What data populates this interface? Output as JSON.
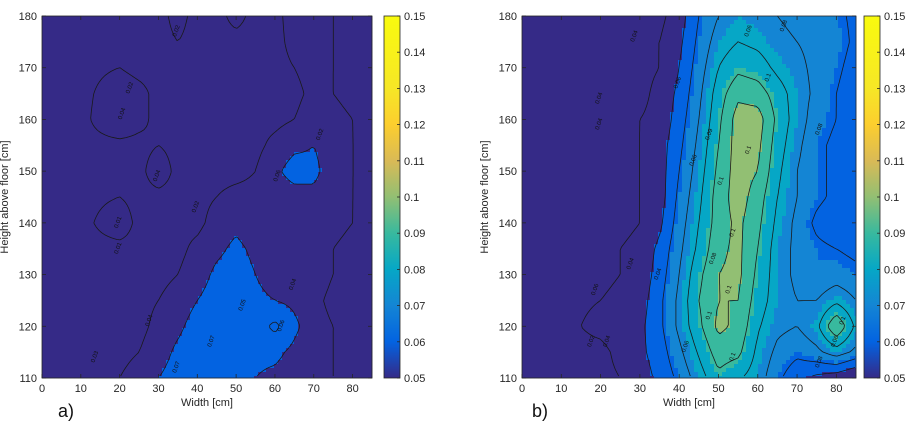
{
  "chart_data": [
    {
      "type": "heatmap",
      "panel_label": "a)",
      "xlabel": "Width [cm]",
      "ylabel": "Height above floor [cm]",
      "xlim": [
        0,
        85
      ],
      "ylim": [
        110,
        180
      ],
      "x_ticks": [
        0,
        10,
        20,
        30,
        40,
        50,
        60,
        70,
        80
      ],
      "y_ticks": [
        110,
        120,
        130,
        140,
        150,
        160,
        170,
        180
      ],
      "colorbar": {
        "range": [
          0.05,
          0.15
        ],
        "ticks": [
          "0.05",
          "0.06",
          "0.07",
          "0.08",
          "0.09",
          "0.1",
          "0.11",
          "0.12",
          "0.13",
          "0.14",
          "0.15"
        ],
        "colormap": "parula"
      },
      "x": [
        0,
        10,
        20,
        25,
        30,
        35,
        40,
        45,
        50,
        55,
        60,
        65,
        70,
        75,
        80,
        85
      ],
      "y": [
        110,
        115,
        120,
        125,
        130,
        135,
        140,
        145,
        150,
        155,
        160,
        165,
        170,
        175,
        180
      ],
      "z": [
        [
          0.05,
          0.05,
          0.052,
          0.055,
          0.06,
          0.064,
          0.066,
          0.066,
          0.064,
          0.06,
          0.058,
          0.056,
          0.054,
          0.052,
          0.05,
          0.05
        ],
        [
          0.05,
          0.05,
          0.05,
          0.052,
          0.056,
          0.062,
          0.066,
          0.066,
          0.066,
          0.062,
          0.062,
          0.058,
          0.054,
          0.052,
          0.05,
          0.05
        ],
        [
          0.05,
          0.05,
          0.05,
          0.05,
          0.054,
          0.058,
          0.064,
          0.066,
          0.066,
          0.064,
          0.07,
          0.062,
          0.055,
          0.052,
          0.05,
          0.05
        ],
        [
          0.05,
          0.05,
          0.05,
          0.05,
          0.052,
          0.055,
          0.06,
          0.064,
          0.066,
          0.062,
          0.06,
          0.058,
          0.054,
          0.05,
          0.05,
          0.05
        ],
        [
          0.05,
          0.05,
          0.05,
          0.05,
          0.05,
          0.052,
          0.056,
          0.062,
          0.064,
          0.06,
          0.056,
          0.058,
          0.056,
          0.052,
          0.05,
          0.05
        ],
        [
          0.05,
          0.05,
          0.05,
          0.05,
          0.05,
          0.05,
          0.054,
          0.058,
          0.062,
          0.058,
          0.054,
          0.056,
          0.055,
          0.052,
          0.05,
          0.05
        ],
        [
          0.05,
          0.05,
          0.056,
          0.05,
          0.05,
          0.05,
          0.05,
          0.055,
          0.058,
          0.055,
          0.052,
          0.054,
          0.056,
          0.054,
          0.052,
          0.05
        ],
        [
          0.05,
          0.05,
          0.052,
          0.05,
          0.05,
          0.05,
          0.05,
          0.052,
          0.054,
          0.054,
          0.055,
          0.056,
          0.058,
          0.055,
          0.052,
          0.05
        ],
        [
          0.05,
          0.05,
          0.05,
          0.05,
          0.056,
          0.05,
          0.05,
          0.05,
          0.05,
          0.052,
          0.058,
          0.064,
          0.062,
          0.056,
          0.052,
          0.05
        ],
        [
          0.05,
          0.05,
          0.05,
          0.05,
          0.052,
          0.05,
          0.05,
          0.05,
          0.05,
          0.05,
          0.054,
          0.058,
          0.06,
          0.056,
          0.052,
          0.05
        ],
        [
          0.05,
          0.05,
          0.058,
          0.054,
          0.05,
          0.05,
          0.05,
          0.05,
          0.05,
          0.05,
          0.05,
          0.052,
          0.056,
          0.054,
          0.052,
          0.05
        ],
        [
          0.05,
          0.05,
          0.056,
          0.054,
          0.05,
          0.05,
          0.05,
          0.05,
          0.05,
          0.05,
          0.05,
          0.05,
          0.054,
          0.052,
          0.05,
          0.05
        ],
        [
          0.05,
          0.05,
          0.052,
          0.05,
          0.05,
          0.05,
          0.05,
          0.05,
          0.05,
          0.05,
          0.05,
          0.052,
          0.055,
          0.052,
          0.05,
          0.05
        ],
        [
          0.05,
          0.05,
          0.05,
          0.05,
          0.05,
          0.052,
          0.05,
          0.05,
          0.05,
          0.05,
          0.05,
          0.054,
          0.056,
          0.052,
          0.05,
          0.05
        ],
        [
          0.05,
          0.05,
          0.05,
          0.05,
          0.05,
          0.054,
          0.05,
          0.05,
          0.054,
          0.05,
          0.05,
          0.055,
          0.056,
          0.052,
          0.05,
          0.05
        ]
      ],
      "contour_levels": [
        0.05,
        0.06,
        0.07,
        0.08,
        0.09,
        0.1
      ],
      "contour_labels": [
        {
          "text": "0.02",
          "x": 23,
          "y": 166
        },
        {
          "text": "0.04",
          "x": 21,
          "y": 161
        },
        {
          "text": "0.04",
          "x": 30,
          "y": 149
        },
        {
          "text": "0.01",
          "x": 20,
          "y": 140
        },
        {
          "text": "0.01",
          "x": 20,
          "y": 135
        },
        {
          "text": "0.02",
          "x": 35,
          "y": 177
        },
        {
          "text": "0.06",
          "x": 61,
          "y": 149
        },
        {
          "text": "0.02",
          "x": 72,
          "y": 157
        },
        {
          "text": "0.02",
          "x": 40,
          "y": 143
        },
        {
          "text": "0.03",
          "x": 14,
          "y": 114
        },
        {
          "text": "0.04",
          "x": 28,
          "y": 121
        },
        {
          "text": "0.06",
          "x": 62,
          "y": 120
        },
        {
          "text": "0.07",
          "x": 44,
          "y": 117
        },
        {
          "text": "0.07",
          "x": 35,
          "y": 112
        },
        {
          "text": "0.05",
          "x": 52,
          "y": 124
        },
        {
          "text": "0.04",
          "x": 65,
          "y": 128
        }
      ]
    },
    {
      "type": "heatmap",
      "panel_label": "b)",
      "xlabel": "Width [cm]",
      "ylabel": "Height above floor [cm]",
      "xlim": [
        0,
        85
      ],
      "ylim": [
        110,
        180
      ],
      "x_ticks": [
        0,
        10,
        20,
        30,
        40,
        50,
        60,
        70,
        80
      ],
      "y_ticks": [
        110,
        120,
        130,
        140,
        150,
        160,
        170,
        180
      ],
      "colorbar": {
        "range": [
          0.05,
          0.15
        ],
        "ticks": [
          "0.05",
          "0.06",
          "0.07",
          "0.08",
          "0.09",
          "0.1",
          "0.11",
          "0.12",
          "0.13",
          "0.14",
          "0.15"
        ],
        "colormap": "parula"
      },
      "x": [
        0,
        10,
        20,
        25,
        30,
        35,
        40,
        45,
        50,
        55,
        60,
        65,
        70,
        75,
        80,
        85
      ],
      "y": [
        110,
        115,
        120,
        125,
        130,
        135,
        140,
        145,
        150,
        155,
        160,
        165,
        170,
        175,
        180
      ],
      "z": [
        [
          0.05,
          0.05,
          0.05,
          0.052,
          0.056,
          0.062,
          0.07,
          0.08,
          0.09,
          0.085,
          0.08,
          0.07,
          0.062,
          0.058,
          0.055,
          0.05
        ],
        [
          0.05,
          0.05,
          0.05,
          0.054,
          0.058,
          0.064,
          0.074,
          0.085,
          0.096,
          0.094,
          0.082,
          0.074,
          0.07,
          0.074,
          0.08,
          0.074
        ],
        [
          0.05,
          0.05,
          0.054,
          0.056,
          0.058,
          0.066,
          0.078,
          0.09,
          0.102,
          0.098,
          0.085,
          0.078,
          0.076,
          0.082,
          0.1,
          0.082
        ],
        [
          0.05,
          0.05,
          0.052,
          0.054,
          0.056,
          0.066,
          0.078,
          0.092,
          0.1,
          0.1,
          0.088,
          0.08,
          0.076,
          0.076,
          0.082,
          0.076
        ],
        [
          0.05,
          0.05,
          0.05,
          0.052,
          0.054,
          0.064,
          0.076,
          0.09,
          0.1,
          0.102,
          0.09,
          0.08,
          0.074,
          0.07,
          0.072,
          0.07
        ],
        [
          0.05,
          0.05,
          0.05,
          0.052,
          0.054,
          0.062,
          0.074,
          0.086,
          0.098,
          0.102,
          0.092,
          0.08,
          0.074,
          0.07,
          0.068,
          0.066
        ],
        [
          0.05,
          0.05,
          0.05,
          0.05,
          0.052,
          0.058,
          0.072,
          0.084,
          0.096,
          0.102,
          0.094,
          0.082,
          0.074,
          0.066,
          0.062,
          0.064
        ],
        [
          0.05,
          0.05,
          0.05,
          0.05,
          0.052,
          0.056,
          0.07,
          0.082,
          0.096,
          0.104,
          0.096,
          0.084,
          0.076,
          0.07,
          0.066,
          0.066
        ],
        [
          0.05,
          0.05,
          0.05,
          0.05,
          0.052,
          0.056,
          0.068,
          0.08,
          0.094,
          0.104,
          0.1,
          0.086,
          0.076,
          0.07,
          0.066,
          0.064
        ],
        [
          0.05,
          0.05,
          0.05,
          0.05,
          0.052,
          0.056,
          0.066,
          0.078,
          0.092,
          0.104,
          0.102,
          0.088,
          0.078,
          0.07,
          0.066,
          0.062
        ],
        [
          0.05,
          0.05,
          0.052,
          0.05,
          0.052,
          0.054,
          0.064,
          0.076,
          0.09,
          0.104,
          0.104,
          0.09,
          0.08,
          0.072,
          0.068,
          0.062
        ],
        [
          0.05,
          0.05,
          0.05,
          0.05,
          0.05,
          0.054,
          0.062,
          0.074,
          0.088,
          0.098,
          0.096,
          0.088,
          0.08,
          0.074,
          0.068,
          0.062
        ],
        [
          0.05,
          0.05,
          0.05,
          0.05,
          0.05,
          0.052,
          0.06,
          0.072,
          0.084,
          0.09,
          0.088,
          0.082,
          0.078,
          0.074,
          0.07,
          0.064
        ],
        [
          0.05,
          0.05,
          0.05,
          0.05,
          0.05,
          0.052,
          0.058,
          0.07,
          0.08,
          0.084,
          0.082,
          0.078,
          0.076,
          0.074,
          0.072,
          0.066
        ],
        [
          0.05,
          0.05,
          0.05,
          0.05,
          0.05,
          0.05,
          0.056,
          0.068,
          0.076,
          0.08,
          0.078,
          0.076,
          0.074,
          0.072,
          0.07,
          0.066
        ]
      ],
      "contour_levels": [
        0.05,
        0.06,
        0.07,
        0.08,
        0.09,
        0.1
      ],
      "contour_labels": [
        {
          "text": "0.04",
          "x": 20,
          "y": 164
        },
        {
          "text": "0.04",
          "x": 20,
          "y": 159
        },
        {
          "text": "0.04",
          "x": 29,
          "y": 176
        },
        {
          "text": "0.06",
          "x": 58,
          "y": 177
        },
        {
          "text": "0.08",
          "x": 67,
          "y": 178
        },
        {
          "text": "0.06",
          "x": 40,
          "y": 167
        },
        {
          "text": "0.1",
          "x": 63,
          "y": 168
        },
        {
          "text": "0.09",
          "x": 48,
          "y": 157
        },
        {
          "text": "0.1",
          "x": 58,
          "y": 154
        },
        {
          "text": "0.08",
          "x": 76,
          "y": 158
        },
        {
          "text": "0.06",
          "x": 44,
          "y": 152
        },
        {
          "text": "0.1",
          "x": 51,
          "y": 148
        },
        {
          "text": "0.04",
          "x": 28,
          "y": 132
        },
        {
          "text": "0.04",
          "x": 35,
          "y": 130
        },
        {
          "text": "0.08",
          "x": 49,
          "y": 133
        },
        {
          "text": "0.1",
          "x": 54,
          "y": 138
        },
        {
          "text": "0.06",
          "x": 19,
          "y": 127
        },
        {
          "text": "0.1",
          "x": 53,
          "y": 127
        },
        {
          "text": "0.1",
          "x": 48,
          "y": 122
        },
        {
          "text": "0.1",
          "x": 82,
          "y": 121
        },
        {
          "text": "0.06",
          "x": 80,
          "y": 117
        },
        {
          "text": "0.08",
          "x": 76,
          "y": 113
        },
        {
          "text": "0.1",
          "x": 54,
          "y": 114
        },
        {
          "text": "0.06",
          "x": 42,
          "y": 116
        },
        {
          "text": "0.02",
          "x": 18,
          "y": 117
        },
        {
          "text": "0.04",
          "x": 22,
          "y": 117
        }
      ]
    }
  ]
}
